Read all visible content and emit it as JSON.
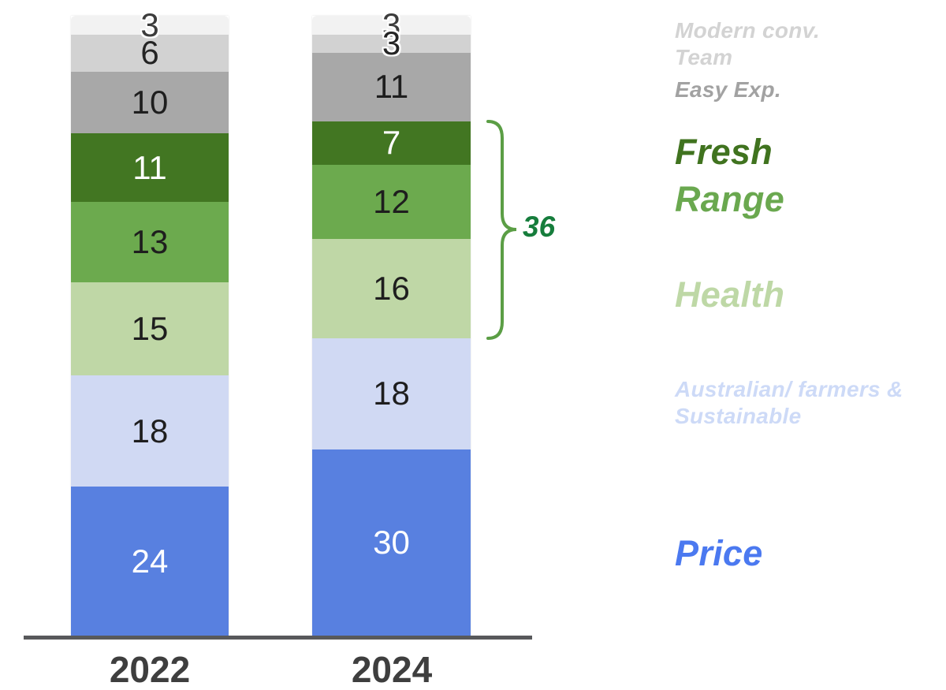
{
  "chart_data": {
    "type": "stacked-bar",
    "title": "",
    "categories": [
      "2022",
      "2024"
    ],
    "ylim": [
      0,
      100
    ],
    "grid": false,
    "legend_position": "right",
    "series_top_to_bottom": [
      {
        "name": "Modern conv.",
        "values": [
          3,
          3
        ],
        "color": "#f2f2f2",
        "label_color": "#3c3c3c"
      },
      {
        "name": "Team",
        "values": [
          6,
          3
        ],
        "color": "#d2d2d2",
        "label_color": "#242424"
      },
      {
        "name": "Easy Exp.",
        "values": [
          10,
          11
        ],
        "color": "#a8a8a8",
        "label_color": "#1e1e1e"
      },
      {
        "name": "Fresh",
        "values": [
          11,
          7
        ],
        "color": "#427622",
        "label_color": "#ffffff"
      },
      {
        "name": "Range",
        "values": [
          13,
          12
        ],
        "color": "#6caa4e",
        "label_color": "#1e1e1e"
      },
      {
        "name": "Health",
        "values": [
          15,
          16
        ],
        "color": "#bfd7a6",
        "label_color": "#1e1e1e"
      },
      {
        "name": "Australian/ farmers & Sustainable",
        "values": [
          18,
          18
        ],
        "color": "#d0d9f3",
        "label_color": "#1e1e1e"
      },
      {
        "name": "Price",
        "values": [
          24,
          30
        ],
        "color": "#5880e0",
        "label_color": "#ffffff"
      }
    ],
    "annotation": {
      "label": "36",
      "color": "#167d3c",
      "brace_color": "#5b9e45",
      "spans_series": [
        "Fresh",
        "Range",
        "Health"
      ],
      "category": "2024"
    },
    "axis_color": "#58595b",
    "tick_label_color": "#3e3e3e"
  },
  "legend": {
    "items": [
      {
        "id": "modern-conv-team",
        "lines": [
          "Modern conv.",
          "Team"
        ],
        "color": "#d3d3d3",
        "size": "small"
      },
      {
        "id": "easy-exp",
        "lines": [
          "Easy Exp."
        ],
        "color": "#a2a2a2",
        "size": "small"
      },
      {
        "id": "fresh",
        "lines": [
          "Fresh"
        ],
        "color": "#40731f",
        "size": "large"
      },
      {
        "id": "range",
        "lines": [
          "Range"
        ],
        "color": "#6aa84f",
        "size": "large"
      },
      {
        "id": "health",
        "lines": [
          "Health"
        ],
        "color": "#bed8a6",
        "size": "large"
      },
      {
        "id": "australian-sustainable",
        "lines": [
          "Australian/ farmers &",
          "Sustainable"
        ],
        "color": "#cddaf7",
        "size": "small"
      },
      {
        "id": "price",
        "lines": [
          "Price"
        ],
        "color": "#4b79f0",
        "size": "large"
      }
    ]
  }
}
